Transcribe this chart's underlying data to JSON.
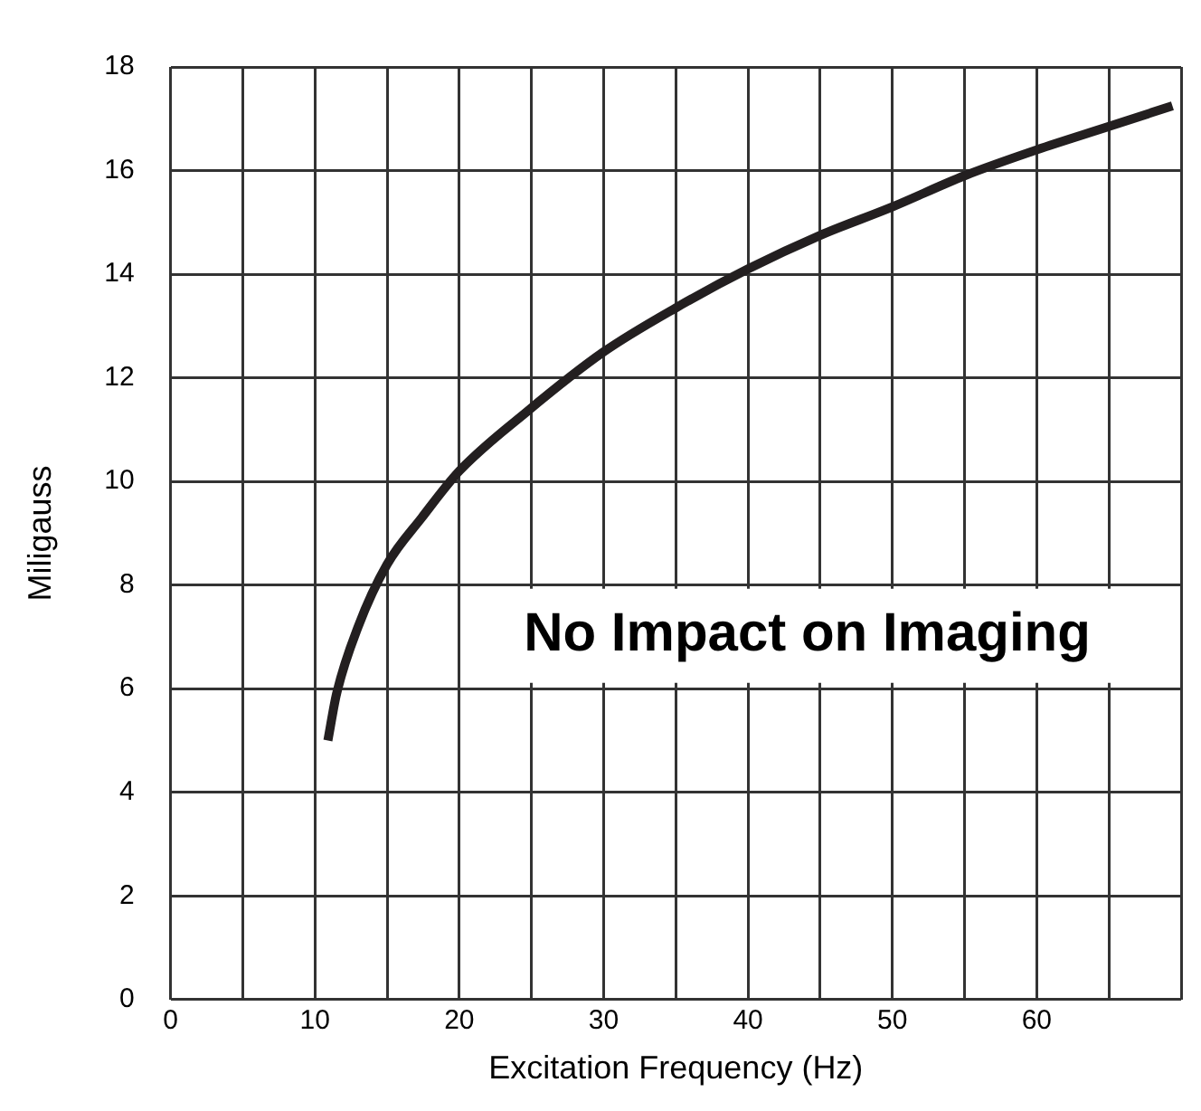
{
  "chart_data": {
    "type": "line",
    "xlabel": "Excitation Frequency (Hz)",
    "ylabel": "Miligauss",
    "xlim": [
      0,
      70
    ],
    "ylim": [
      0,
      18
    ],
    "xticks": [
      0,
      {
        "value": 5,
        "label": null
      },
      10,
      {
        "value": 15,
        "label": null
      },
      20,
      {
        "value": 25,
        "label": null
      },
      30,
      {
        "value": 35,
        "label": null
      },
      40,
      {
        "value": 45,
        "label": null
      },
      50,
      {
        "value": 55,
        "label": null
      },
      60,
      {
        "value": 65,
        "label": null
      },
      {
        "value": 70,
        "label": null
      }
    ],
    "yticks": [
      0,
      2,
      4,
      6,
      8,
      10,
      12,
      14,
      16,
      18
    ],
    "grid": true,
    "legend": false,
    "marker": "none",
    "line_style": "solid",
    "annotations": [
      "No Impact on Imaging"
    ],
    "series": [
      {
        "color": "#231f20",
        "x": [
          10.9,
          11.5,
          13,
          15,
          17.4,
          20,
          24.7,
          30,
          35,
          40,
          45,
          50,
          55,
          60,
          65,
          69.4
        ],
        "values": [
          5,
          5.9,
          7.2,
          8.4,
          9.3,
          10.2,
          11.35,
          12.5,
          13.35,
          14.1,
          14.75,
          15.3,
          15.9,
          16.4,
          16.85,
          17.25
        ]
      }
    ]
  }
}
